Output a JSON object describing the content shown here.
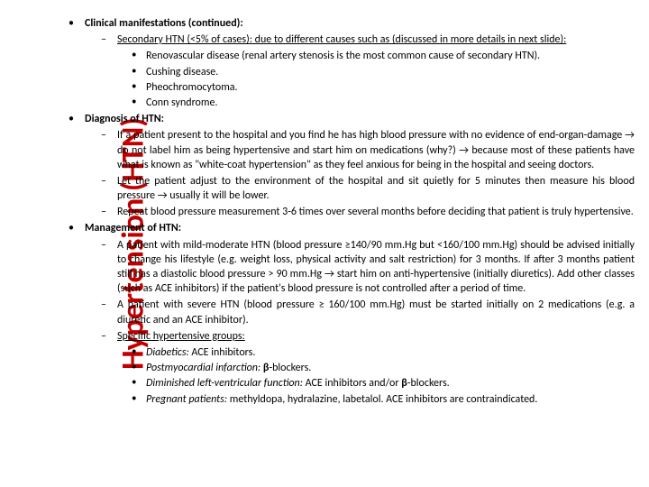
{
  "side_title_color": "#c00000",
  "side_title": "Hypertension (HTN)",
  "sec1": {
    "heading": "Clinical manifestations (continued):",
    "sub": "Secondary HTN (<5% of cases): due to different causes such as (discussed in more details in next slide):",
    "items": [
      "Renovascular disease (renal artery stenosis is the most common cause of secondary HTN).",
      "Cushing disease.",
      "Pheochromocytoma.",
      "Conn syndrome."
    ]
  },
  "sec2": {
    "heading": "Diagnosis of HTN:",
    "d1": "If a patient present to the hospital and you find he has high blood pressure with no evidence of end-organ-damage → do not label him as being hypertensive and start him on medications (why?) → because most of these patients have what is known as \"white-coat hypertension\" as they feel anxious for being in the hospital and seeing doctors.",
    "d2": "Let the patient adjust to the environment of the hospital and sit quietly for 5 minutes then measure his blood pressure → usually it will be lower.",
    "d3": "Repeat blood pressure measurement 3-6 times over several months before deciding that patient is truly hypertensive."
  },
  "sec3": {
    "heading": "Management of HTN:",
    "d1": "A patient with mild-moderate HTN (blood pressure ≥140/90 mm.Hg but <160/100 mm.Hg) should be advised initially to change his lifestyle (e.g. weight loss, physical activity and salt restriction) for 3 months. If after 3 months patient still has a diastolic blood pressure > 90 mm.Hg → start him on anti-hypertensive (initially diuretics). Add other classes (such as ACE inhibitors) if the patient's blood pressure is not controlled after a period of time.",
    "d2": "A patient with severe HTN (blood pressure ≥ 160/100 mm.Hg) must be started initially on 2 medications (e.g. a diuretic and an ACE inhibitor).",
    "d3_lead": "Specific hypertensive groups:",
    "g1a": "Diabetics:",
    "g1b": " ACE inhibitors.",
    "g2a": "Postmyocardial infarction:",
    "g2b_pre": " ",
    "g2b_bold": "β",
    "g2b_post": "-blockers.",
    "g3a": "Diminished left-ventricular function:",
    "g3b_pre": " ACE inhibitors and/or ",
    "g3b_bold": "β",
    "g3b_post": "-blockers.",
    "g4a": "Pregnant patients:",
    "g4b": " methyldopa, hydralazine, labetalol. ACE inhibitors are contraindicated."
  }
}
